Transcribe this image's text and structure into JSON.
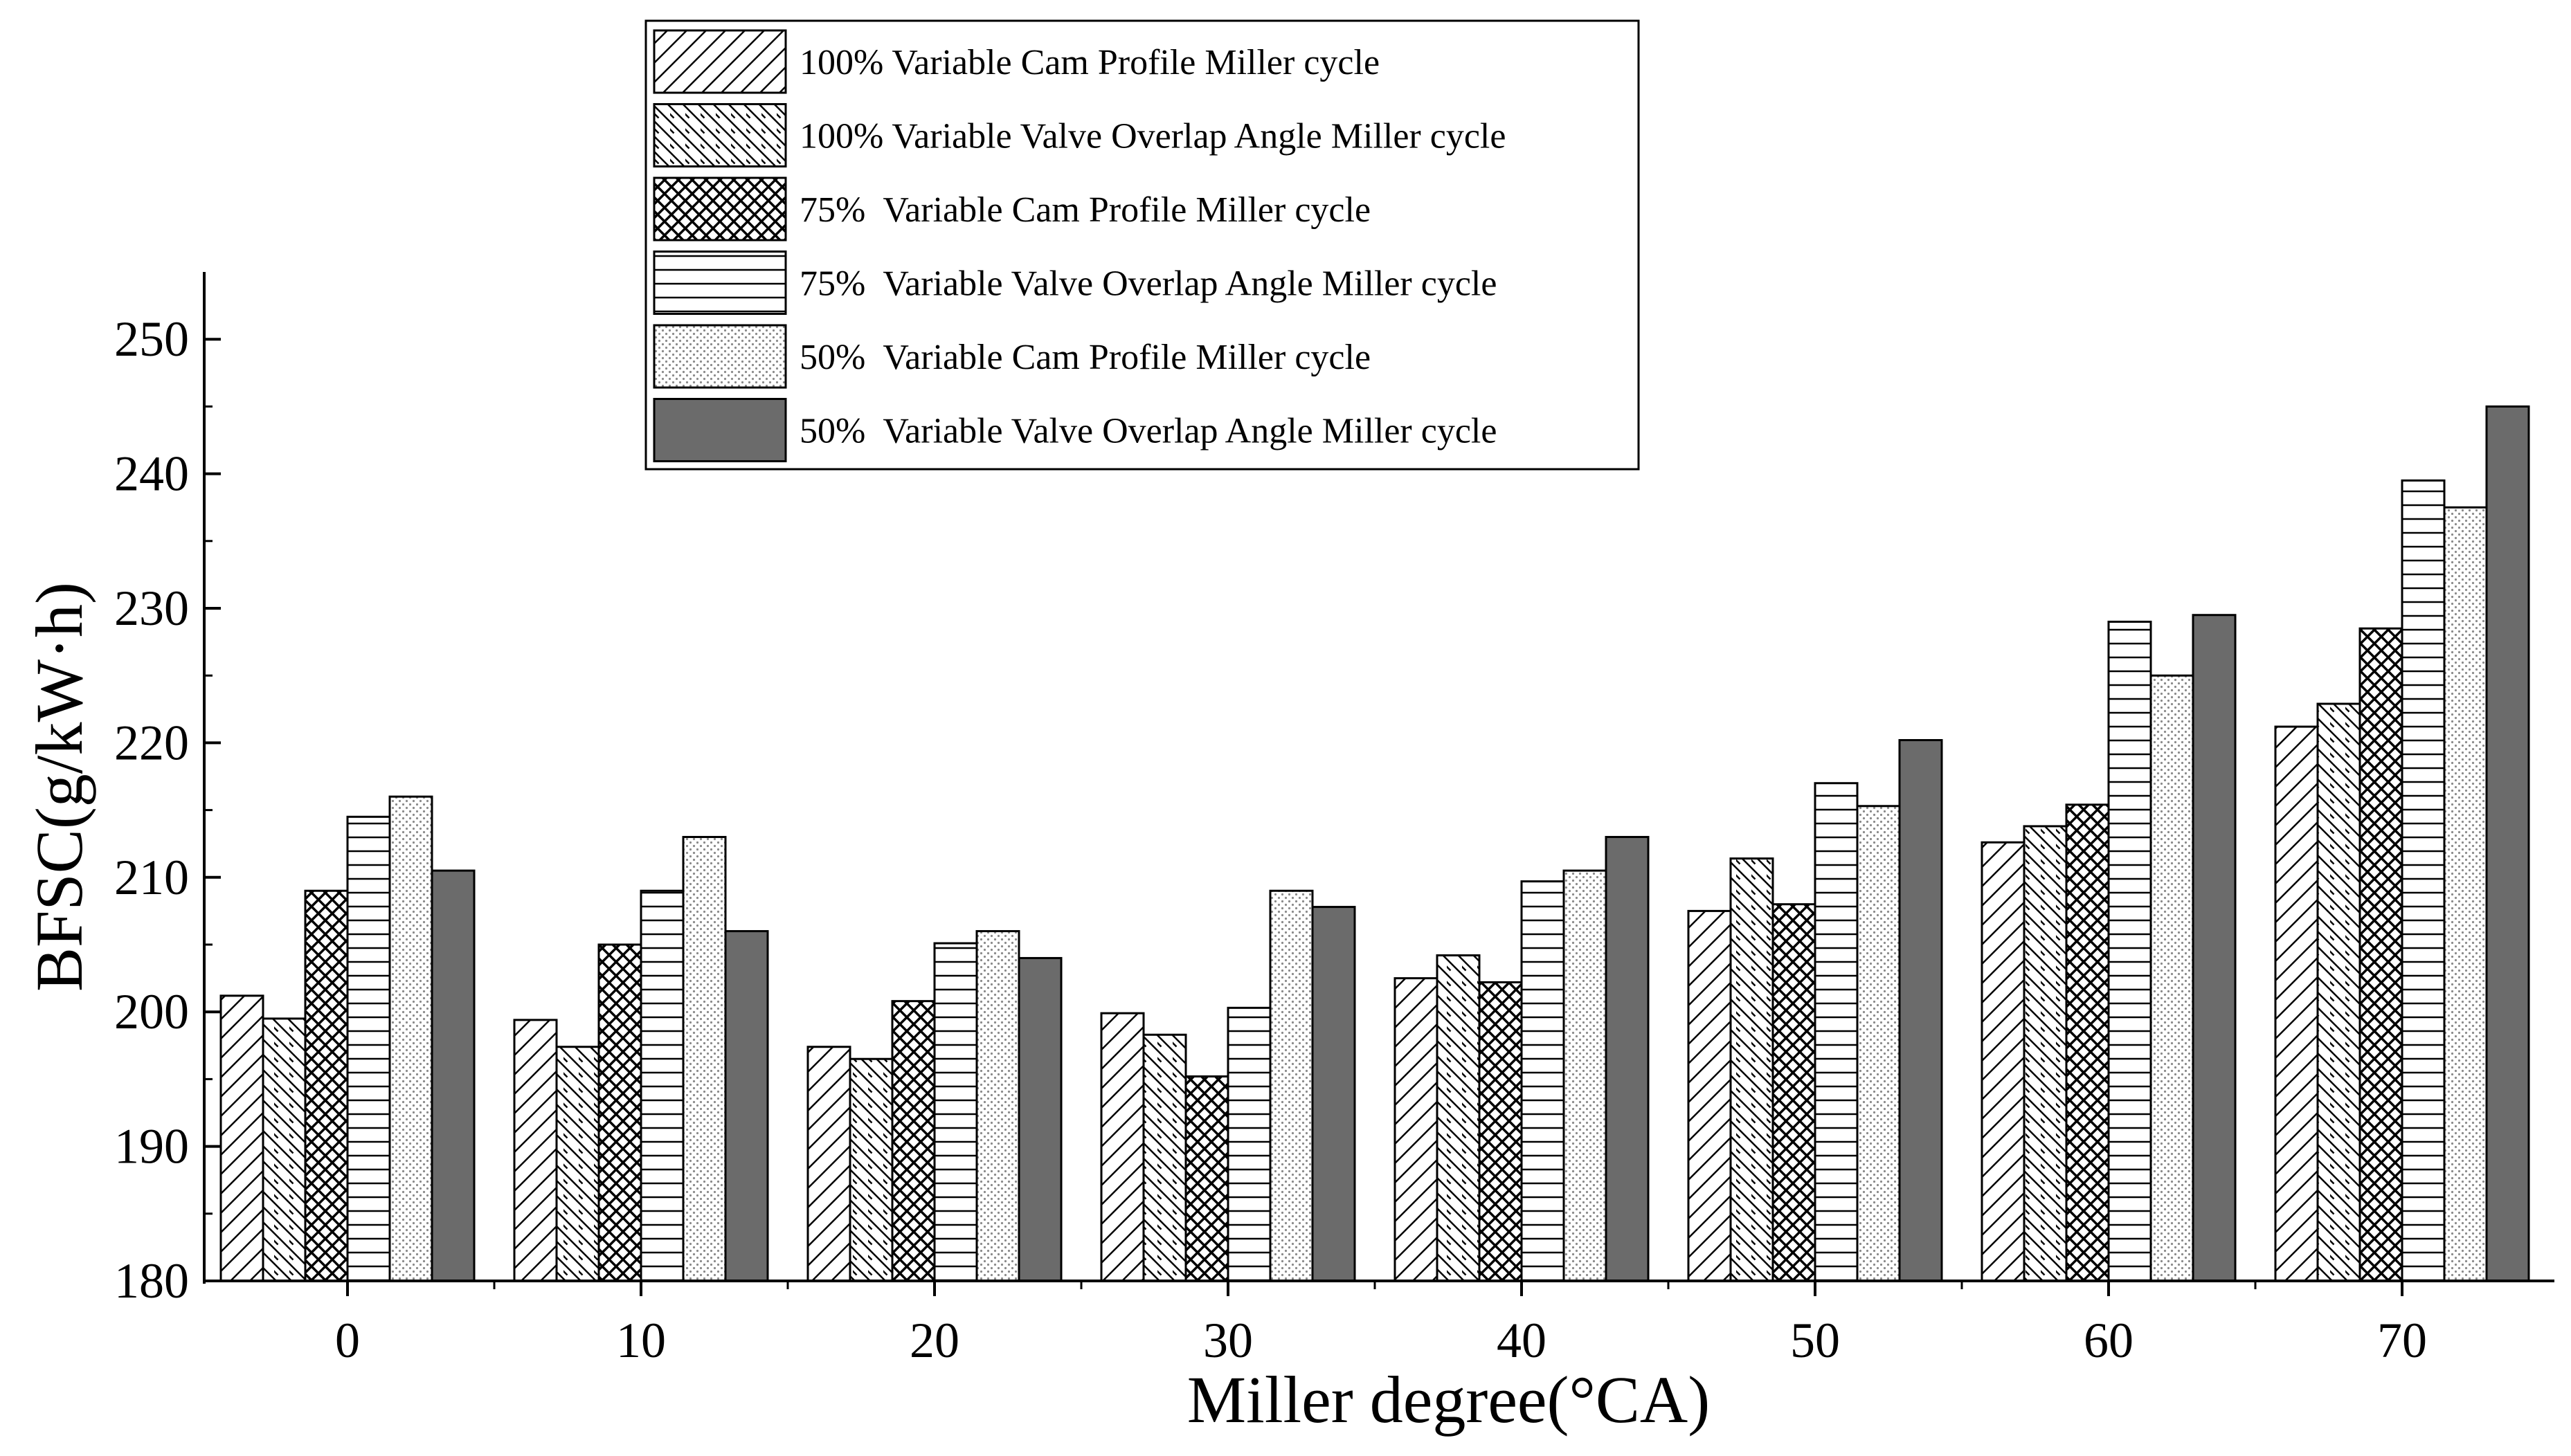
{
  "chart_data": {
    "type": "bar",
    "title": "",
    "xlabel": "Miller degree(°CA)",
    "ylabel": "BFSC(g/kW·h)",
    "ylim": [
      180,
      255
    ],
    "yticks": [
      180,
      190,
      200,
      210,
      220,
      230,
      240,
      250
    ],
    "categories": [
      "0",
      "10",
      "20",
      "30",
      "40",
      "50",
      "60",
      "70"
    ],
    "legend_position": "top-center",
    "series": [
      {
        "name": "100% Variable Cam Profile Miller cycle",
        "pattern": "diag-right",
        "values": [
          201.2,
          199.4,
          197.4,
          199.9,
          202.5,
          207.5,
          212.6,
          221.2
        ]
      },
      {
        "name": "100% Variable Valve Overlap Angle Miller cycle",
        "pattern": "diag-left",
        "values": [
          199.5,
          197.4,
          196.5,
          198.3,
          204.2,
          211.4,
          213.8,
          222.9
        ]
      },
      {
        "name": "75%  Variable Cam Profile Miller cycle",
        "pattern": "crosshatch",
        "values": [
          209.0,
          205.0,
          200.8,
          195.2,
          202.2,
          208.0,
          215.4,
          228.5
        ]
      },
      {
        "name": "75%  Variable Valve Overlap Angle Miller cycle",
        "pattern": "horizontal",
        "values": [
          214.5,
          209.0,
          205.1,
          200.3,
          209.7,
          217.0,
          229.0,
          239.5
        ]
      },
      {
        "name": "50%  Variable Cam Profile Miller cycle",
        "pattern": "dots",
        "values": [
          216.0,
          213.0,
          206.0,
          209.0,
          210.5,
          215.3,
          225.0,
          237.5
        ]
      },
      {
        "name": "50%  Variable Valve Overlap Angle Miller cycle",
        "pattern": "dark",
        "values": [
          210.5,
          206.0,
          204.0,
          207.8,
          213.0,
          220.2,
          229.5,
          245.0
        ]
      }
    ]
  },
  "colors": {
    "axis": "#000000",
    "dark_fill": "#6b6b6b",
    "dots": "#8a8a8a",
    "background": "#ffffff"
  }
}
